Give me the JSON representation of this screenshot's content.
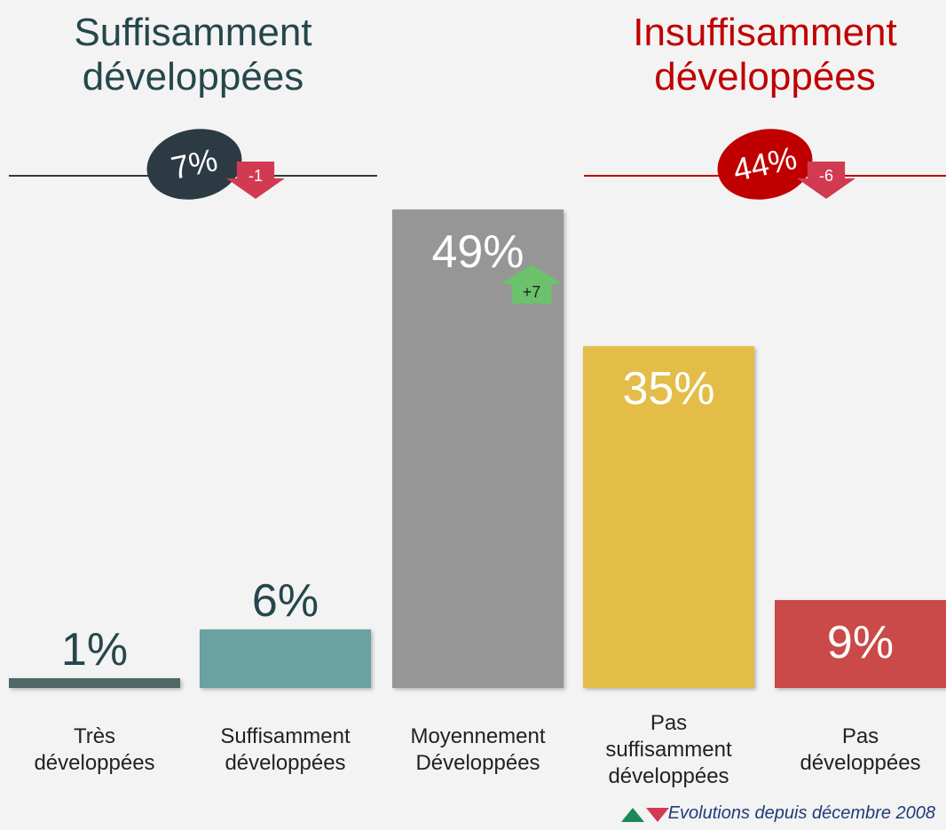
{
  "chart_data": {
    "type": "bar",
    "categories": [
      "Très développées",
      "Suffisamment développées",
      "Moyennement Développées",
      "Pas suffisamment développées",
      "Pas développées"
    ],
    "values": [
      1,
      6,
      49,
      35,
      9
    ],
    "value_labels": [
      "1%",
      "6%",
      "49%",
      "35%",
      "9%"
    ],
    "colors": [
      "#4f6766",
      "#6aa1a1",
      "#969696",
      "#e3bd47",
      "#c94a48"
    ],
    "ylim": [
      0,
      50
    ],
    "changes": [
      null,
      null,
      7,
      null,
      null
    ],
    "change_labels": [
      null,
      null,
      "+7",
      null,
      null
    ],
    "groups": [
      {
        "title": "Suffisamment développées",
        "color": "#25474c",
        "badge_color": "#2c3a44",
        "value": 7,
        "value_label": "7%",
        "change": -1
      },
      {
        "title": "Insuffisamment développées",
        "color": "#c00000",
        "badge_color": "#c00000",
        "value": 44,
        "value_label": "44%",
        "change": -6
      }
    ],
    "note": "Evolutions depuis décembre 2008"
  }
}
